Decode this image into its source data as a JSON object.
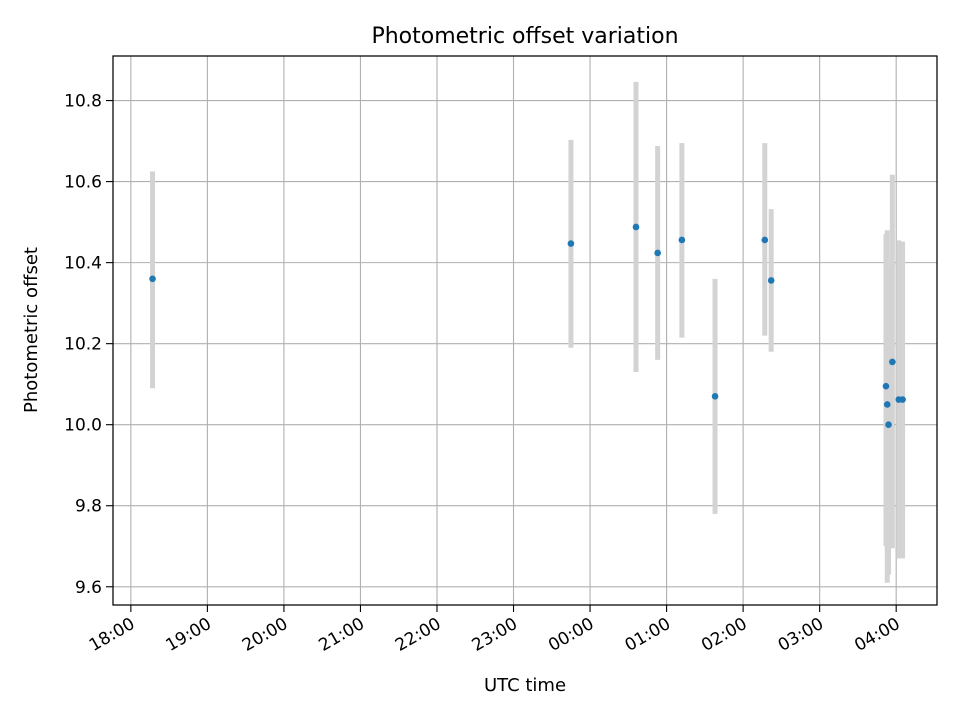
{
  "chart_data": {
    "type": "scatter",
    "title": "Photometric offset variation",
    "xlabel": "UTC time",
    "ylabel": "Photometric offset",
    "x_unit": "UTC time (HH:MM, day 1 from 18:00 to 23:59, day 2 from 00:00)",
    "xlim": [
      "17:46",
      "04:32"
    ],
    "ylim": [
      9.555,
      10.91
    ],
    "grid": true,
    "x_ticks": [
      "18:00",
      "19:00",
      "20:00",
      "21:00",
      "22:00",
      "23:00",
      "00:00",
      "01:00",
      "02:00",
      "03:00",
      "04:00"
    ],
    "y_ticks": [
      "9.6",
      "9.8",
      "10.0",
      "10.2",
      "10.4",
      "10.6",
      "10.8"
    ],
    "colors": {
      "marker": "#1f77b4",
      "errorbar": "#d3d3d3",
      "grid": "#b0b0b0"
    },
    "series": [
      {
        "points": [
          {
            "x": "18:17",
            "y": 10.36,
            "yerr_low": 10.09,
            "yerr_high": 10.625
          },
          {
            "x": "23:45",
            "y": 10.447,
            "yerr_low": 10.19,
            "yerr_high": 10.703
          },
          {
            "x": "00:36",
            "y": 10.488,
            "yerr_low": 10.13,
            "yerr_high": 10.846
          },
          {
            "x": "00:53",
            "y": 10.424,
            "yerr_low": 10.16,
            "yerr_high": 10.688
          },
          {
            "x": "01:12",
            "y": 10.456,
            "yerr_low": 10.215,
            "yerr_high": 10.695
          },
          {
            "x": "01:38",
            "y": 10.07,
            "yerr_low": 9.78,
            "yerr_high": 10.36
          },
          {
            "x": "02:17",
            "y": 10.456,
            "yerr_low": 10.22,
            "yerr_high": 10.695
          },
          {
            "x": "02:22",
            "y": 10.356,
            "yerr_low": 10.18,
            "yerr_high": 10.532
          },
          {
            "x": "03:52",
            "y": 10.095,
            "yerr_low": 9.7,
            "yerr_high": 10.47
          },
          {
            "x": "03:53",
            "y": 10.05,
            "yerr_low": 9.61,
            "yerr_high": 10.48
          },
          {
            "x": "03:54",
            "y": 10.0,
            "yerr_low": 9.63,
            "yerr_high": 10.39
          },
          {
            "x": "03:57",
            "y": 10.155,
            "yerr_low": 9.695,
            "yerr_high": 10.617
          },
          {
            "x": "04:02",
            "y": 10.062,
            "yerr_low": 9.67,
            "yerr_high": 10.455
          },
          {
            "x": "04:05",
            "y": 10.062,
            "yerr_low": 9.67,
            "yerr_high": 10.452
          }
        ]
      }
    ]
  }
}
